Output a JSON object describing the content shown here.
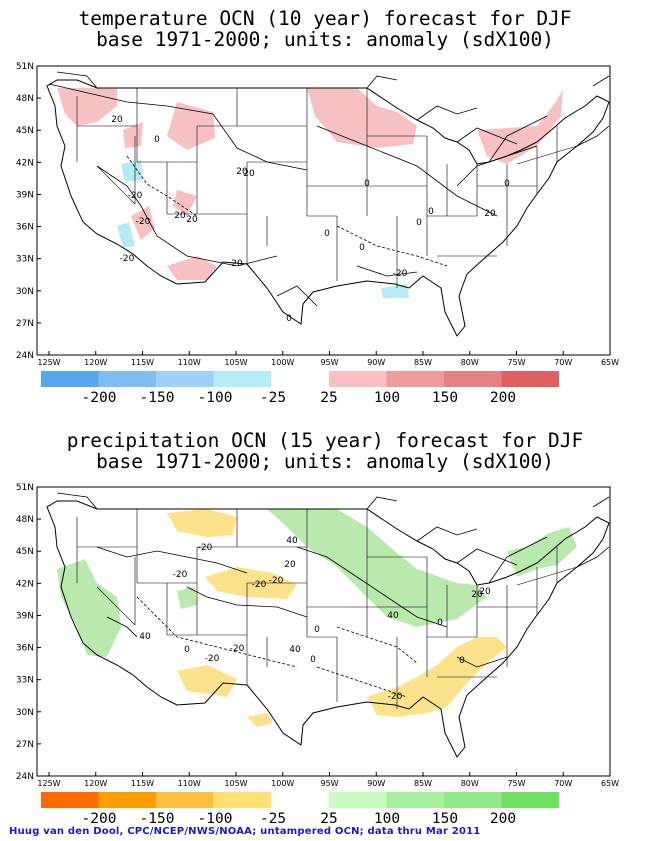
{
  "panels": [
    {
      "title_line1": "temperature OCN (10 year) forecast for DJF",
      "title_line2": "base 1971-2000; units: anomaly (sdX100)",
      "lat_labels": [
        "51N",
        "48N",
        "45N",
        "42N",
        "39N",
        "36N",
        "33N",
        "30N",
        "27N",
        "24N"
      ],
      "lon_labels": [
        "125W",
        "120W",
        "115W",
        "110W",
        "105W",
        "100W",
        "95W",
        "90W",
        "85W",
        "80W",
        "75W",
        "70W",
        "65W"
      ],
      "contour_labels": [
        "20",
        "0",
        "20",
        "20",
        "-20",
        "20",
        "-20",
        "20",
        "0",
        "0",
        "-20",
        "20",
        "0",
        "-20",
        "0",
        "0",
        "0",
        "0",
        "20"
      ],
      "legend_neg_colors": [
        "#55a8ee",
        "#7ebcf2",
        "#a0d0f5",
        "#b8ecf8"
      ],
      "legend_pos_colors": [
        "#f8c0c0",
        "#f09a9a",
        "#e88080",
        "#e06060"
      ],
      "legend_labels": [
        "-200",
        "-150",
        "-100",
        "-25",
        "25",
        "100",
        "150",
        "200"
      ],
      "positive_fill": "#f7c1c3",
      "negative_fill": "#b7e9f7"
    },
    {
      "title_line1": "precipitation OCN (15 year) forecast for DJF",
      "title_line2": "base 1971-2000; units: anomaly (sdX100)",
      "lat_labels": [
        "51N",
        "48N",
        "45N",
        "42N",
        "39N",
        "36N",
        "33N",
        "30N",
        "27N",
        "24N"
      ],
      "lon_labels": [
        "125W",
        "120W",
        "115W",
        "110W",
        "105W",
        "100W",
        "95W",
        "90W",
        "85W",
        "80W",
        "75W",
        "70W",
        "65W"
      ],
      "contour_labels": [
        "-20",
        "-20",
        "20",
        "40",
        "-20",
        "-20",
        "40",
        "40",
        "0",
        "-20",
        "0",
        "20",
        "0",
        "-20",
        "40",
        "-20",
        "0",
        "20",
        "0"
      ],
      "legend_neg_colors": [
        "#ff6a00",
        "#ff9e00",
        "#ffc040",
        "#ffe070"
      ],
      "legend_pos_colors": [
        "#c8ffc0",
        "#a8f0a0",
        "#90e888",
        "#70e060"
      ],
      "legend_labels": [
        "-200",
        "-150",
        "-100",
        "-25",
        "25",
        "100",
        "150",
        "200"
      ],
      "positive_fill": "#b9e9ad",
      "negative_fill": "#fde28c"
    }
  ],
  "footer": "Huug van den Dool, CPC/NCEP/NWS/NOAA; untampered OCN; data thru Mar 2011"
}
